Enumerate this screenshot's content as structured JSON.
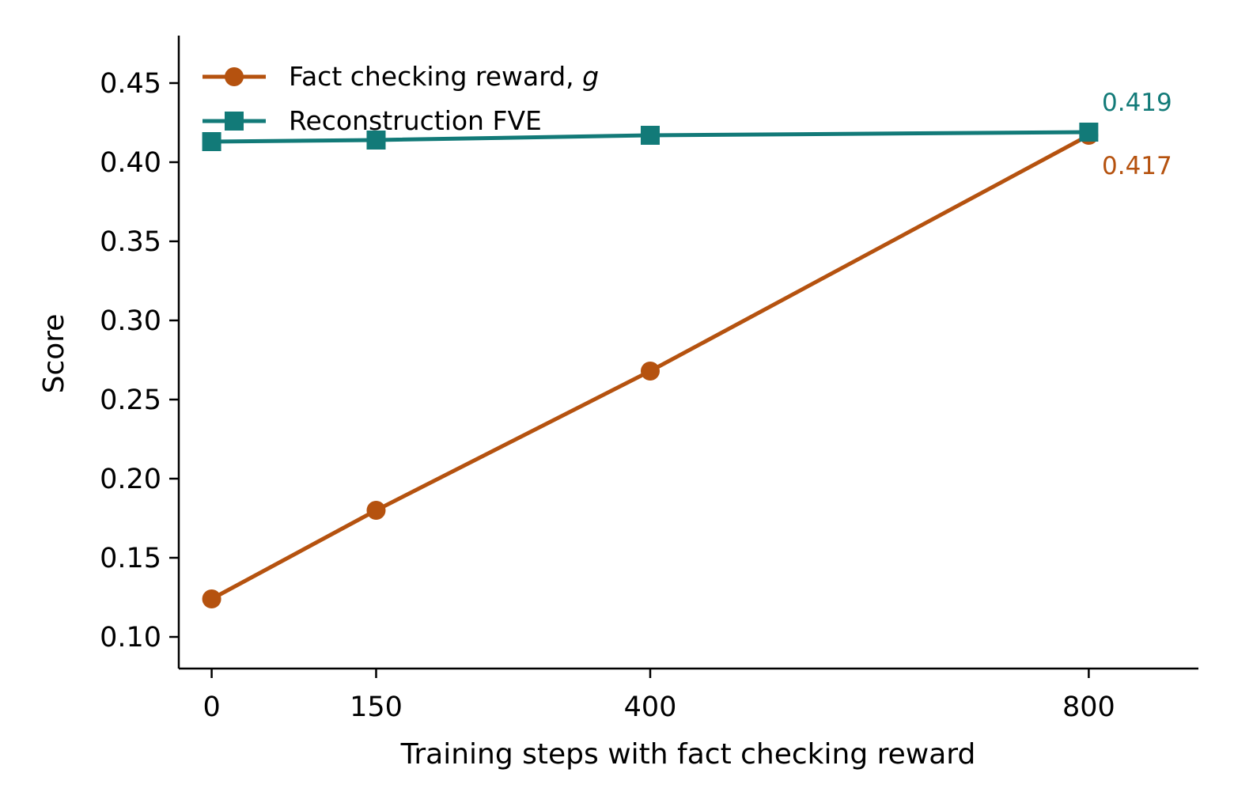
{
  "chart_data": {
    "type": "line",
    "xlabel": "Training steps with fact checking reward",
    "ylabel": "Score",
    "x": [
      0,
      150,
      400,
      800
    ],
    "x_tick_labels": [
      "0",
      "150",
      "400",
      "800"
    ],
    "xlim": [
      -30,
      900
    ],
    "ylim": [
      0.08,
      0.48
    ],
    "y_ticks": [
      0.1,
      0.15,
      0.2,
      0.25,
      0.3,
      0.35,
      0.4,
      0.45
    ],
    "y_tick_labels": [
      "0.10",
      "0.15",
      "0.20",
      "0.25",
      "0.30",
      "0.35",
      "0.40",
      "0.45"
    ],
    "grid": false,
    "legend_position": "top-left",
    "series": [
      {
        "name": "Fact checking reward, ",
        "name_italic_suffix": "g",
        "marker": "circle",
        "color": "#B5520F",
        "values": [
          0.124,
          0.18,
          0.268,
          0.417
        ],
        "end_label": "0.417"
      },
      {
        "name": "Reconstruction FVE",
        "marker": "square",
        "color": "#127A78",
        "values": [
          0.413,
          0.414,
          0.417,
          0.419
        ],
        "end_label": "0.419"
      }
    ]
  }
}
